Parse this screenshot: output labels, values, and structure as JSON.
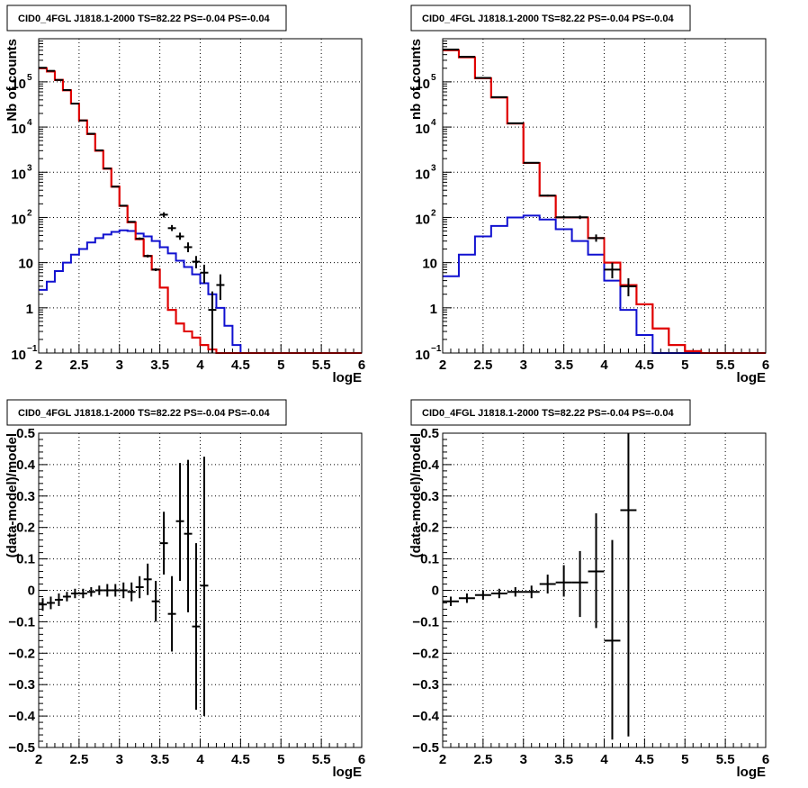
{
  "chart_data": [
    {
      "type": "line",
      "panel": "top-left",
      "title": "CID0_4FGL J1818.1-2000 TS=82.22 PS=-0.04 PS=-0.04",
      "xlabel": "logE",
      "ylabel": "Nb of counts",
      "xlim": [
        2,
        6
      ],
      "ylim": [
        0.1,
        900000
      ],
      "yscale": "log",
      "grid": true,
      "xticks": [
        2,
        2.5,
        3,
        3.5,
        4,
        4.5,
        5,
        5.5,
        6
      ],
      "xtick_labels": [
        "2",
        "2.5",
        "3",
        "3.5",
        "4",
        "4.5",
        "5",
        "5.5",
        "6"
      ],
      "yticks": [
        0.1,
        1,
        10,
        100,
        1000,
        10000,
        100000
      ],
      "ytick_labels": [
        {
          "base": "10",
          "exp": "−1"
        },
        {
          "base": "1",
          "exp": ""
        },
        {
          "base": "10",
          "exp": ""
        },
        {
          "base": "10",
          "exp": "2"
        },
        {
          "base": "10",
          "exp": "3"
        },
        {
          "base": "10",
          "exp": "4"
        },
        {
          "base": "10",
          "exp": "5"
        }
      ],
      "series": [
        {
          "color": "#e00000",
          "style": "step",
          "bin_edges": [
            2.0,
            2.1,
            2.2,
            2.3,
            2.4,
            2.5,
            2.6,
            2.7,
            2.8,
            2.9,
            3.0,
            3.1,
            3.2,
            3.3,
            3.4,
            3.5,
            3.6,
            3.7,
            3.8,
            3.9,
            4.0,
            4.1,
            4.2,
            4.3,
            4.4,
            4.5,
            4.6,
            4.7,
            4.8,
            4.9,
            5.0,
            5.1,
            5.2,
            5.3,
            5.4,
            5.5,
            5.6,
            5.7,
            5.8,
            5.9,
            6.0
          ],
          "values": [
            200000,
            170000,
            110000,
            65000,
            33000,
            14000,
            7000,
            3000,
            1200,
            480,
            180,
            78,
            33,
            14,
            7,
            2.8,
            0.9,
            0.45,
            0.3,
            0.22,
            0.15,
            0.12,
            0.1,
            0.1,
            0.1,
            0.1,
            0.1,
            0.1,
            0.1,
            0.1,
            0.1,
            0.1,
            0.1,
            0.1,
            0.1,
            0.1,
            0.1,
            0.1,
            0.1,
            0.1
          ]
        },
        {
          "color": "#1010d0",
          "style": "step",
          "bin_edges": [
            2.0,
            2.1,
            2.2,
            2.3,
            2.4,
            2.5,
            2.6,
            2.7,
            2.8,
            2.9,
            3.0,
            3.1,
            3.2,
            3.3,
            3.4,
            3.5,
            3.6,
            3.7,
            3.8,
            3.9,
            4.0,
            4.1,
            4.2,
            4.3,
            4.4,
            4.5,
            4.6,
            4.7,
            4.8,
            4.9,
            5.0,
            5.1,
            5.2,
            5.3,
            5.4,
            5.5,
            5.6,
            5.7,
            5.8,
            5.9,
            6.0
          ],
          "values": [
            2.5,
            3.8,
            6.5,
            10,
            15,
            20,
            28,
            35,
            42,
            48,
            52,
            50,
            44,
            38,
            30,
            22,
            16,
            11,
            8,
            5.5,
            3.5,
            2,
            1,
            0.4,
            0.15,
            0.1,
            0.1,
            0.1,
            0.1,
            0.1,
            0.1,
            0.1,
            0.1,
            0.1,
            0.1,
            0.1,
            0.1,
            0.1,
            0.1,
            0.1
          ]
        },
        {
          "color": "#e00000",
          "style": "step",
          "bin_edges": [
            2.0,
            2.1,
            2.2,
            2.3,
            2.4,
            2.5,
            2.6,
            2.7,
            2.8,
            2.9,
            3.0,
            3.1,
            3.2,
            3.3,
            3.4,
            3.5,
            3.6,
            3.7,
            3.8,
            3.9,
            4.0,
            4.1,
            4.2,
            4.3,
            4.4,
            4.5,
            4.6,
            4.7,
            4.8,
            4.9,
            5.0,
            5.1,
            5.2,
            5.3,
            5.4,
            5.5,
            5.6,
            5.7,
            5.8,
            5.9,
            6.0
          ],
          "values": [
            200000,
            170000,
            110000,
            65000,
            33000,
            14000,
            7000,
            3000,
            1200,
            480,
            180,
            78,
            33,
            14,
            7,
            2.8,
            0.9,
            0.45,
            0.3,
            0.22,
            0.15,
            0.12,
            0.1,
            0.1,
            0.1,
            0.1,
            0.1,
            0.1,
            0.1,
            0.1,
            0.1,
            0.1,
            0.1,
            0.1,
            0.1,
            0.1,
            0.1,
            0.1,
            0.1,
            0.1
          ]
        }
      ],
      "points": {
        "color": "#000000",
        "x": [
          2.05,
          2.15,
          2.25,
          2.35,
          2.45,
          2.55,
          2.65,
          2.75,
          2.85,
          2.95,
          3.05,
          3.15,
          3.25,
          3.35,
          3.45,
          3.55,
          3.65,
          3.75,
          3.85,
          3.95,
          4.05,
          4.15,
          4.25
        ],
        "xerr": [
          0.05,
          0.05,
          0.05,
          0.05,
          0.05,
          0.05,
          0.05,
          0.05,
          0.05,
          0.05,
          0.05,
          0.05,
          0.05,
          0.05,
          0.05,
          0.05,
          0.05,
          0.05,
          0.05,
          0.05,
          0.05,
          0.05,
          0.05
        ],
        "y": [
          205000,
          175000,
          110000,
          66000,
          33000,
          14000,
          7100,
          3050,
          1210,
          480,
          182,
          80,
          34,
          14,
          7,
          115,
          58,
          38,
          22,
          10.5,
          6,
          0.9,
          3.2
        ],
        "ylo": [
          204000,
          174000,
          109000,
          65500,
          32800,
          13900,
          7000,
          3000,
          1190,
          475,
          178,
          78,
          32,
          13,
          6.5,
          100,
          50,
          32,
          17,
          7.5,
          3.5,
          0.1,
          1.5
        ],
        "yhi": [
          206000,
          176000,
          111000,
          66500,
          33200,
          14100,
          7200,
          3100,
          1230,
          485,
          186,
          82,
          36,
          15,
          7.5,
          130,
          68,
          46,
          28,
          14,
          9,
          2.3,
          5.5
        ]
      }
    },
    {
      "type": "line",
      "panel": "top-right",
      "title": "CID0_4FGL J1818.1-2000 TS=82.22 PS=-0.04 PS=-0.04",
      "xlabel": "logE",
      "ylabel": "nb of counts",
      "xlim": [
        2,
        6
      ],
      "ylim": [
        0.1,
        900000
      ],
      "yscale": "log",
      "grid": true,
      "xticks": [
        2,
        2.5,
        3,
        3.5,
        4,
        4.5,
        5,
        5.5,
        6
      ],
      "xtick_labels": [
        "2",
        "2.5",
        "3",
        "3.5",
        "4",
        "4.5",
        "5",
        "5.5",
        "6"
      ],
      "yticks": [
        0.1,
        1,
        10,
        100,
        1000,
        10000,
        100000
      ],
      "ytick_labels": [
        {
          "base": "10",
          "exp": "−1"
        },
        {
          "base": "1",
          "exp": ""
        },
        {
          "base": "10",
          "exp": ""
        },
        {
          "base": "10",
          "exp": "2"
        },
        {
          "base": "10",
          "exp": "3"
        },
        {
          "base": "10",
          "exp": "4"
        },
        {
          "base": "10",
          "exp": "5"
        }
      ],
      "series": [
        {
          "color": "#e00000",
          "style": "step",
          "bin_edges": [
            2.0,
            2.2,
            2.4,
            2.6,
            2.8,
            3.0,
            3.2,
            3.4,
            3.6,
            3.8,
            4.0,
            4.2,
            4.4,
            4.6,
            4.8,
            5.0,
            5.2,
            5.4,
            5.6,
            5.8,
            6.0
          ],
          "values": [
            500000,
            350000,
            120000,
            45000,
            12000,
            1600,
            300,
            100,
            100,
            35,
            10,
            3.2,
            1.2,
            0.35,
            0.15,
            0.11,
            0.1,
            0.1,
            0.1,
            0.1
          ]
        },
        {
          "color": "#1010d0",
          "style": "step",
          "bin_edges": [
            2.0,
            2.2,
            2.4,
            2.6,
            2.8,
            3.0,
            3.2,
            3.4,
            3.6,
            3.8,
            4.0,
            4.2,
            4.4,
            4.6,
            4.8,
            5.0,
            5.2,
            5.4,
            5.6,
            5.8,
            6.0
          ],
          "values": [
            5,
            15,
            38,
            65,
            100,
            110,
            90,
            55,
            30,
            15,
            4,
            0.9,
            0.25,
            0.1,
            0.1,
            0.1,
            0.1,
            0.1,
            0.1,
            0.1
          ]
        },
        {
          "color": "#e00000",
          "style": "step",
          "bin_edges": [
            2.0,
            2.2,
            2.4,
            2.6,
            2.8,
            3.0,
            3.2,
            3.4,
            3.6,
            3.8,
            4.0,
            4.2,
            4.4,
            4.6,
            4.8,
            5.0,
            5.2,
            5.4,
            5.6,
            5.8,
            6.0
          ],
          "values": [
            500000,
            350000,
            120000,
            45000,
            12000,
            1600,
            300,
            100,
            100,
            35,
            10,
            3.2,
            1.2,
            0.35,
            0.15,
            0.11,
            0.1,
            0.1,
            0.1,
            0.1
          ]
        }
      ],
      "points": {
        "color": "#000000",
        "x": [
          2.1,
          2.3,
          2.5,
          2.7,
          2.9,
          3.1,
          3.3,
          3.5,
          3.7,
          3.9,
          4.1,
          4.3
        ],
        "xerr": [
          0.1,
          0.1,
          0.1,
          0.1,
          0.1,
          0.1,
          0.1,
          0.1,
          0.1,
          0.1,
          0.1,
          0.1
        ],
        "y": [
          520000,
          360000,
          122000,
          46000,
          12100,
          1620,
          305,
          101,
          101,
          35,
          7,
          3
        ],
        "ylo": [
          515000,
          357000,
          121000,
          45500,
          11900,
          1580,
          290,
          95,
          92,
          29,
          4.5,
          1.8
        ],
        "yhi": [
          525000,
          363000,
          123000,
          46500,
          12300,
          1660,
          320,
          108,
          110,
          42,
          10,
          4.5
        ]
      }
    },
    {
      "type": "scatter",
      "panel": "bottom-left",
      "title": "CID0_4FGL J1818.1-2000 TS=82.22 PS=-0.04 PS=-0.04",
      "xlabel": "logE",
      "ylabel": "(data-model)/model",
      "xlim": [
        2,
        6
      ],
      "ylim": [
        -0.5,
        0.5
      ],
      "grid": true,
      "xticks": [
        2,
        2.5,
        3,
        3.5,
        4,
        4.5,
        5,
        5.5,
        6
      ],
      "xtick_labels": [
        "2",
        "2.5",
        "3",
        "3.5",
        "4",
        "4.5",
        "5",
        "5.5",
        "6"
      ],
      "yticks": [
        -0.5,
        -0.4,
        -0.3,
        -0.2,
        -0.1,
        0,
        0.1,
        0.2,
        0.3,
        0.4,
        0.5
      ],
      "ytick_labels": [
        "−0.5",
        "−0.4",
        "−0.3",
        "−0.2",
        "−0.1",
        "0",
        "0.1",
        "0.2",
        "0.3",
        "0.4",
        "0.5"
      ],
      "points": {
        "color": "#000000",
        "x": [
          2.05,
          2.15,
          2.25,
          2.35,
          2.45,
          2.55,
          2.65,
          2.75,
          2.85,
          2.95,
          3.05,
          3.15,
          3.25,
          3.35,
          3.45,
          3.55,
          3.65,
          3.75,
          3.85,
          3.95,
          4.05
        ],
        "xerr": [
          0.05,
          0.05,
          0.05,
          0.05,
          0.05,
          0.05,
          0.05,
          0.05,
          0.05,
          0.05,
          0.05,
          0.05,
          0.05,
          0.05,
          0.05,
          0.05,
          0.05,
          0.05,
          0.05,
          0.05,
          0.05
        ],
        "y": [
          -0.045,
          -0.04,
          -0.03,
          -0.02,
          -0.01,
          -0.01,
          -0.005,
          0,
          0,
          0,
          0,
          -0.005,
          0.01,
          0.035,
          -0.035,
          0.15,
          -0.075,
          0.22,
          0.18,
          -0.115,
          0.015
        ],
        "ylo": [
          -0.065,
          -0.06,
          -0.05,
          -0.035,
          -0.025,
          -0.025,
          -0.02,
          -0.015,
          -0.02,
          -0.02,
          -0.025,
          -0.035,
          -0.025,
          -0.015,
          -0.1,
          0.05,
          -0.195,
          0.03,
          -0.07,
          -0.38,
          -0.4
        ],
        "yhi": [
          -0.025,
          -0.02,
          -0.01,
          -0.005,
          0.005,
          0.005,
          0.01,
          0.015,
          0.02,
          0.02,
          0.025,
          0.025,
          0.045,
          0.085,
          0.03,
          0.25,
          0.045,
          0.405,
          0.415,
          0.15,
          0.425
        ]
      }
    },
    {
      "type": "scatter",
      "panel": "bottom-right",
      "title": "CID0_4FGL J1818.1-2000 TS=82.22 PS=-0.04 PS=-0.04",
      "xlabel": "logE",
      "ylabel": "(data-model)/model",
      "xlim": [
        2,
        6
      ],
      "ylim": [
        -0.5,
        0.5
      ],
      "grid": true,
      "xticks": [
        2,
        2.5,
        3,
        3.5,
        4,
        4.5,
        5,
        5.5,
        6
      ],
      "xtick_labels": [
        "2",
        "2.5",
        "3",
        "3.5",
        "4",
        "4.5",
        "5",
        "5.5",
        "6"
      ],
      "yticks": [
        -0.5,
        -0.4,
        -0.3,
        -0.2,
        -0.1,
        0,
        0.1,
        0.2,
        0.3,
        0.4,
        0.5
      ],
      "ytick_labels": [
        "−0.5",
        "−0.4",
        "−0.3",
        "−0.2",
        "−0.1",
        "0",
        "0.1",
        "0.2",
        "0.3",
        "0.4",
        "0.5"
      ],
      "points": {
        "color": "#000000",
        "x": [
          2.1,
          2.3,
          2.5,
          2.7,
          2.9,
          3.1,
          3.3,
          3.5,
          3.7,
          3.9,
          4.1,
          4.3
        ],
        "xerr": [
          0.1,
          0.1,
          0.1,
          0.1,
          0.1,
          0.1,
          0.1,
          0.1,
          0.1,
          0.1,
          0.1,
          0.1
        ],
        "y": [
          -0.035,
          -0.025,
          -0.015,
          -0.01,
          -0.005,
          -0.005,
          0.02,
          0.025,
          0.025,
          0.06,
          -0.16,
          0.255
        ],
        "ylo": [
          -0.05,
          -0.04,
          -0.03,
          -0.025,
          -0.02,
          -0.025,
          -0.01,
          -0.02,
          -0.085,
          -0.12,
          -0.475,
          -0.465
        ],
        "yhi": [
          -0.02,
          -0.01,
          0,
          0.005,
          0.01,
          0.015,
          0.05,
          0.08,
          0.125,
          0.245,
          0.16,
          0.5
        ]
      }
    }
  ]
}
